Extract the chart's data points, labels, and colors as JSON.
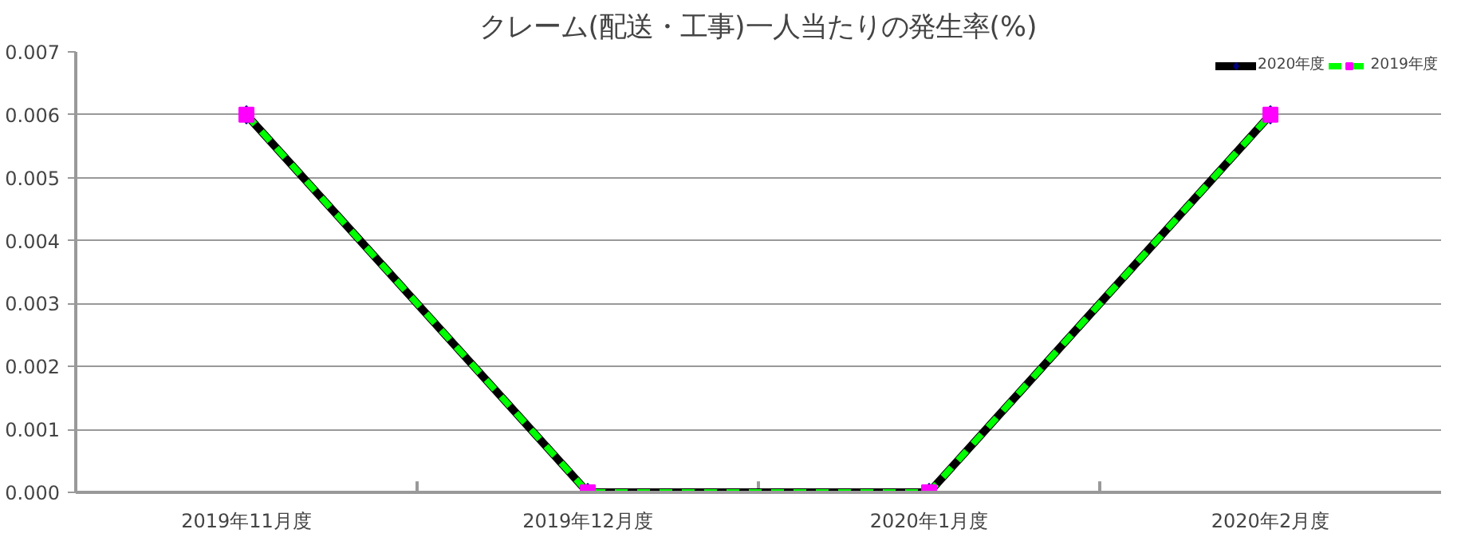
{
  "chart_data": {
    "type": "line",
    "title": "クレーム(配送・工事)一人当たりの発生率(%)",
    "categories": [
      "2019年11月度",
      "2019年12月度",
      "2020年1月度",
      "2020年2月度"
    ],
    "series": [
      {
        "name": "2020年度",
        "color": "#000000",
        "colors": [
          "#000080",
          "#000080",
          "#000080",
          "#000080"
        ],
        "marker": "diamond",
        "line_style": "solid",
        "values": [
          0.006,
          0,
          0,
          0.006
        ]
      },
      {
        "name": "2019年度",
        "color": "#00ff00",
        "colors": [
          "#ff00ff",
          "#ff00ff",
          "#ff00ff",
          "#ff00ff"
        ],
        "marker": "square",
        "line_style": "dashed",
        "values": [
          0.006,
          0,
          0,
          0.006
        ]
      }
    ],
    "ylim": [
      0,
      0.007
    ],
    "yticks": [
      {
        "value": 0,
        "label": "0.000"
      },
      {
        "value": 0.001,
        "label": "0.001"
      },
      {
        "value": 0.002,
        "label": "0.002"
      },
      {
        "value": 0.003,
        "label": "0.003"
      },
      {
        "value": 0.004,
        "label": "0.004"
      },
      {
        "value": 0.005,
        "label": "0.005"
      },
      {
        "value": 0.006,
        "label": "0.006"
      },
      {
        "value": 0.007,
        "label": "0.007"
      }
    ],
    "grid": "y",
    "legend": "top right"
  }
}
